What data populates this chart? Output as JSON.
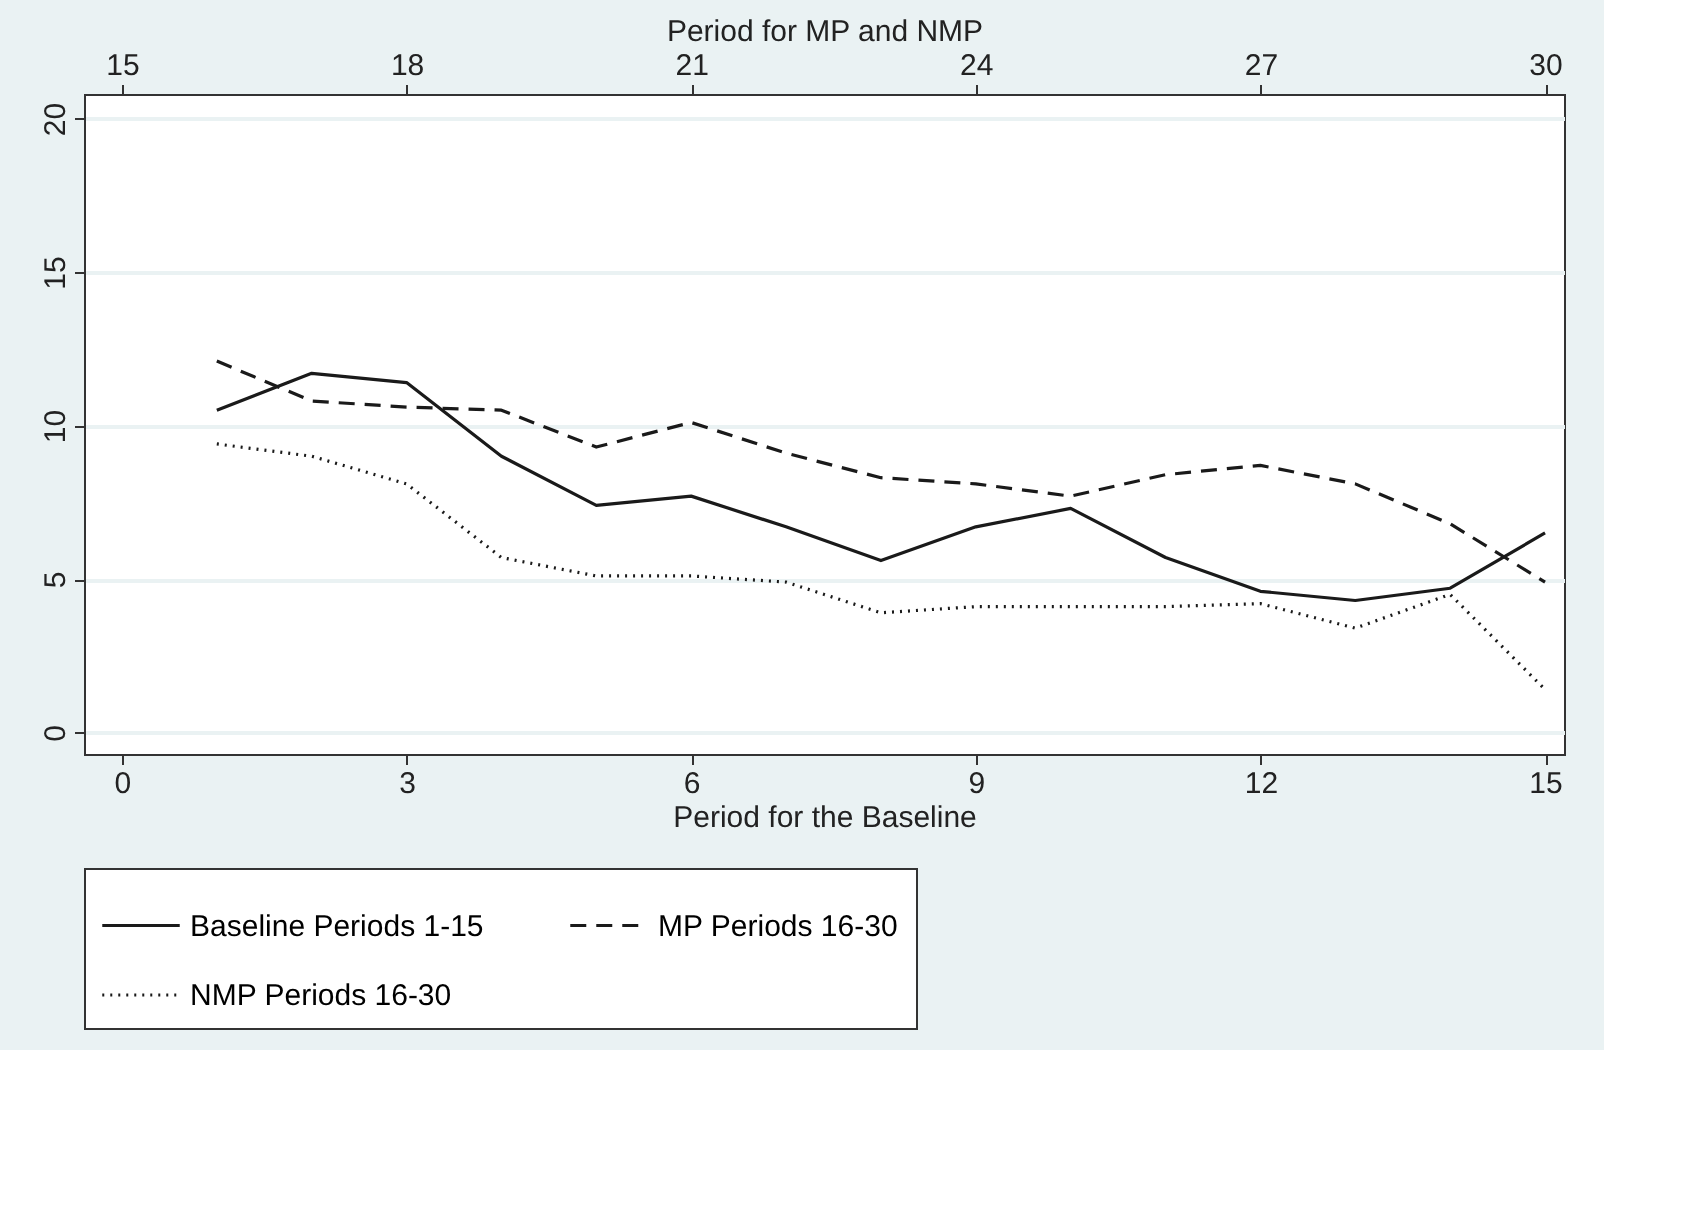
{
  "chart_data": {
    "type": "line",
    "xlabel": "Period for the Baseline",
    "x2label": "Period for MP and NMP",
    "xlim": [
      -0.4,
      15.2
    ],
    "xticks": [
      0,
      3,
      6,
      9,
      12,
      15
    ],
    "x2lim": [
      14.6,
      30.2
    ],
    "x2ticks": [
      15,
      18,
      21,
      24,
      27,
      30
    ],
    "ylim": [
      -0.7,
      20.8
    ],
    "yticks": [
      0,
      5,
      10,
      15,
      20
    ],
    "grid": "y",
    "legend": "bottom",
    "series": [
      {
        "name": "Baseline Periods 1-15",
        "color": "#1a1a1a",
        "line_style": "solid",
        "x": [
          1,
          2,
          3,
          4,
          5,
          6,
          7,
          8,
          9,
          10,
          11,
          12,
          13,
          14,
          15
        ],
        "values": [
          10.5,
          11.7,
          11.4,
          9.0,
          7.4,
          7.7,
          6.7,
          5.6,
          6.7,
          7.3,
          5.7,
          4.6,
          4.3,
          4.7,
          6.5
        ]
      },
      {
        "name": "MP Periods 16-30",
        "color": "#1a1a1a",
        "line_style": "dashed",
        "axis": "x2",
        "x": [
          16,
          17,
          18,
          19,
          20,
          21,
          22,
          23,
          24,
          25,
          26,
          27,
          28,
          29,
          30
        ],
        "values": [
          12.1,
          10.8,
          10.6,
          10.5,
          9.3,
          10.1,
          9.1,
          8.3,
          8.1,
          7.7,
          8.4,
          8.7,
          8.1,
          6.8,
          4.9
        ]
      },
      {
        "name": "NMP Periods 16-30",
        "color": "#1a1a1a",
        "line_style": "dotted",
        "axis": "x2",
        "x": [
          16,
          17,
          18,
          19,
          20,
          21,
          22,
          23,
          24,
          25,
          26,
          27,
          28,
          29,
          30
        ],
        "values": [
          9.4,
          9.0,
          8.1,
          5.7,
          5.1,
          5.1,
          4.9,
          3.9,
          4.1,
          4.1,
          4.1,
          4.2,
          3.4,
          4.5,
          1.4
        ]
      }
    ]
  }
}
